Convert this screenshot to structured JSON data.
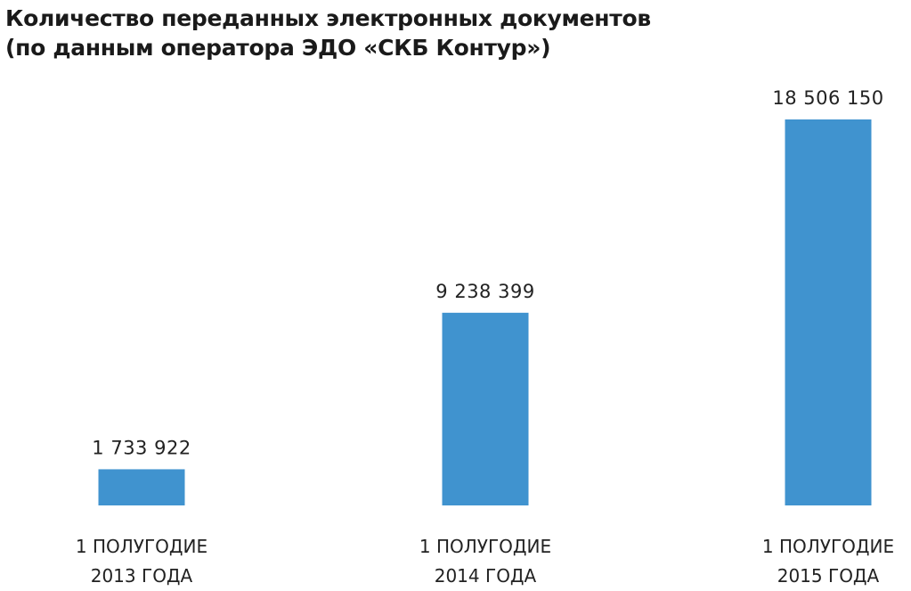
{
  "chart_data": {
    "type": "bar",
    "title_lines": [
      "Количество переданных электронных документов",
      "(по данным оператора ЭДО «СКБ Контур»)"
    ],
    "categories": [
      [
        "1 ПОЛУГОДИЕ",
        "2013 ГОДА"
      ],
      [
        "1 ПОЛУГОДИЕ",
        "2014 ГОДА"
      ],
      [
        "1 ПОЛУГОДИЕ",
        "2015 ГОДА"
      ]
    ],
    "values": [
      1733922,
      9238399,
      18506150
    ],
    "value_labels": [
      "1 733 922",
      "9 238 399",
      "18 506 150"
    ],
    "ylim": [
      0,
      18506150
    ],
    "grid": false,
    "legend": "none",
    "bar_color": "#4093cf"
  }
}
